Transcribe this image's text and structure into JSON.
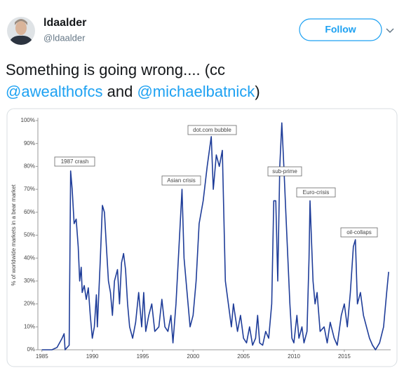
{
  "header": {
    "name": "ldaalder",
    "handle": "@ldaalder",
    "follow": "Follow"
  },
  "tweet": {
    "text": [
      "Something is going wrong.... (cc",
      "@awealthofcs",
      " and ",
      "@michaelbatnick",
      ")"
    ]
  },
  "chart_data": {
    "type": "line",
    "y_label": "% of worldwide markets in a bear market",
    "annotations": [
      "1987 crash",
      "dot.com bubble",
      "Asian crisis",
      "sub-prime",
      "Euro-crisis",
      "oil-collaps"
    ],
    "color": "#1f3d99",
    "xlim": [
      1984.6,
      2019.6
    ],
    "xticks": [
      1985,
      1990,
      1995,
      2000,
      2005,
      2010,
      2015
    ],
    "ylim": [
      0,
      100
    ],
    "yticks": [
      {
        "value": 0,
        "label": "0%"
      },
      {
        "value": 10,
        "label": "10%"
      },
      {
        "value": 20,
        "label": "20%"
      },
      {
        "value": 30,
        "label": "30%"
      },
      {
        "value": 40,
        "label": "40%"
      },
      {
        "value": 50,
        "label": "50%"
      },
      {
        "value": 60,
        "label": "60%"
      },
      {
        "value": 70,
        "label": "70%"
      },
      {
        "value": 80,
        "label": "80%"
      },
      {
        "value": 90,
        "label": "90%"
      },
      {
        "value": 100,
        "label": "100%"
      }
    ],
    "x": [
      1985.0,
      1986.0,
      1986.5,
      1987.0,
      1987.2,
      1987.3,
      1987.7,
      1987.85,
      1988.0,
      1988.2,
      1988.4,
      1988.6,
      1988.75,
      1988.9,
      1989.0,
      1989.2,
      1989.4,
      1989.6,
      1989.8,
      1990.0,
      1990.2,
      1990.4,
      1990.5,
      1990.8,
      1991.0,
      1991.2,
      1991.4,
      1991.6,
      1991.8,
      1992.0,
      1992.2,
      1992.5,
      1992.7,
      1992.9,
      1993.1,
      1993.3,
      1993.5,
      1993.7,
      1994.0,
      1994.3,
      1994.6,
      1994.9,
      1995.1,
      1995.3,
      1995.6,
      1995.9,
      1996.2,
      1996.6,
      1996.9,
      1997.2,
      1997.5,
      1997.8,
      1998.0,
      1998.3,
      1998.6,
      1998.9,
      1999.1,
      1999.4,
      1999.7,
      2000.0,
      2000.3,
      2000.6,
      2001.0,
      2001.4,
      2001.8,
      2002.0,
      2002.3,
      2002.6,
      2002.9,
      2003.2,
      2003.5,
      2003.8,
      2004.0,
      2004.4,
      2004.7,
      2005.0,
      2005.3,
      2005.6,
      2005.9,
      2006.2,
      2006.4,
      2006.6,
      2006.9,
      2007.2,
      2007.5,
      2007.8,
      2008.0,
      2008.2,
      2008.4,
      2008.6,
      2008.8,
      2009.0,
      2009.2,
      2009.4,
      2009.6,
      2009.8,
      2010.0,
      2010.3,
      2010.5,
      2010.8,
      2011.0,
      2011.3,
      2011.5,
      2011.6,
      2011.9,
      2012.1,
      2012.3,
      2012.6,
      2013.0,
      2013.3,
      2013.6,
      2014.0,
      2014.3,
      2014.7,
      2015.0,
      2015.3,
      2015.6,
      2015.9,
      2016.1,
      2016.3,
      2016.6,
      2016.9,
      2017.2,
      2017.5,
      2017.8,
      2018.1,
      2018.5,
      2018.9,
      2019.2,
      2019.4
    ],
    "values": [
      0,
      0,
      1,
      5,
      7,
      0,
      2,
      78,
      70,
      55,
      57,
      45,
      30,
      36,
      25,
      28,
      22,
      27,
      15,
      5,
      10,
      24,
      10,
      40,
      63,
      60,
      45,
      30,
      25,
      15,
      30,
      35,
      20,
      38,
      42,
      35,
      20,
      10,
      5,
      12,
      25,
      10,
      25,
      8,
      15,
      20,
      8,
      10,
      22,
      10,
      8,
      15,
      3,
      20,
      45,
      70,
      40,
      25,
      10,
      15,
      30,
      55,
      65,
      80,
      93,
      70,
      85,
      80,
      87,
      30,
      20,
      10,
      20,
      8,
      15,
      5,
      3,
      10,
      2,
      5,
      15,
      3,
      2,
      8,
      5,
      20,
      65,
      65,
      30,
      80,
      99,
      80,
      60,
      40,
      20,
      5,
      3,
      15,
      5,
      10,
      3,
      8,
      40,
      65,
      30,
      20,
      25,
      8,
      10,
      3,
      12,
      5,
      2,
      15,
      20,
      10,
      25,
      45,
      48,
      20,
      25,
      15,
      10,
      5,
      2,
      0,
      3,
      10,
      25,
      34
    ]
  }
}
